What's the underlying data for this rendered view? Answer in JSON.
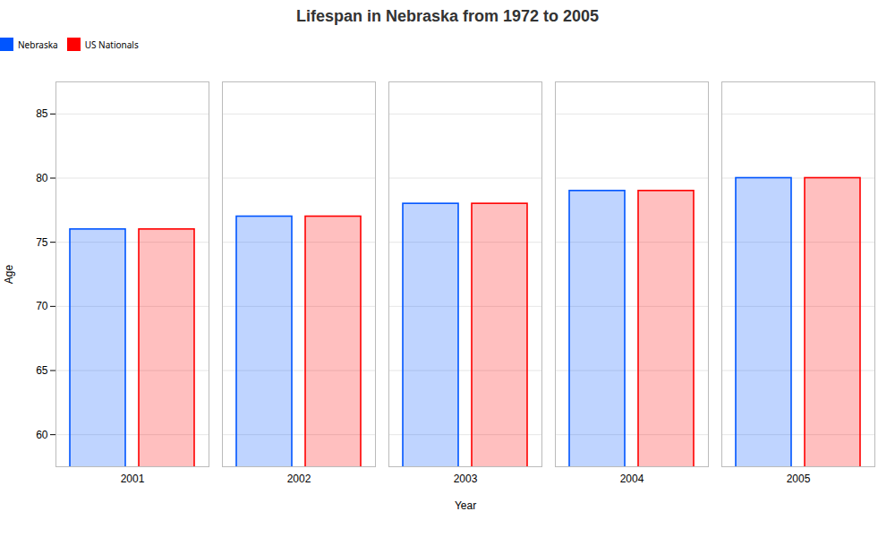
{
  "chart_data": {
    "type": "bar",
    "title": "Lifespan in Nebraska from 1972 to 2005",
    "xlabel": "Year",
    "ylabel": "Age",
    "categories": [
      "2001",
      "2002",
      "2003",
      "2004",
      "2005"
    ],
    "series": [
      {
        "name": "Nebraska",
        "color": "#0055ff",
        "values": [
          76,
          77,
          78,
          79,
          80
        ]
      },
      {
        "name": "US Nationals",
        "color": "#ff0000",
        "values": [
          76,
          77,
          78,
          79,
          80
        ]
      }
    ],
    "ylim": [
      57.5,
      87.5
    ],
    "yticks": [
      60,
      65,
      70,
      75,
      80,
      85
    ],
    "grid": true,
    "legend": "top"
  }
}
